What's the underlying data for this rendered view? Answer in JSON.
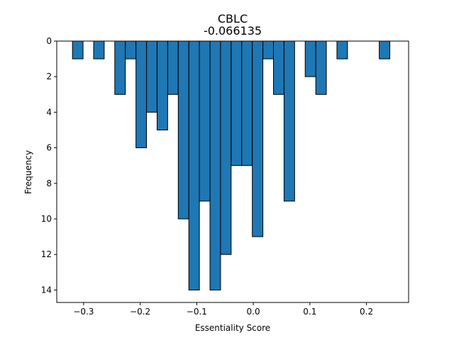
{
  "chart_data": {
    "type": "bar",
    "title": "CBLC",
    "subtitle": "-0.066135",
    "xlabel": "Essentiality Score",
    "ylabel": "Frequency",
    "xlim": [
      -0.3475,
      0.2745
    ],
    "ylim": [
      0,
      14.7
    ],
    "y_inverted": true,
    "bin_width": 0.0187,
    "bar_color": "#1f77b4",
    "edge_color": "#000000",
    "x_ticks": [
      -0.3,
      -0.2,
      -0.1,
      0.0,
      0.1,
      0.2
    ],
    "x_tick_labels": [
      "−0.3",
      "−0.2",
      "−0.1",
      "0.0",
      "0.1",
      "0.2"
    ],
    "y_ticks": [
      0,
      2,
      4,
      6,
      8,
      10,
      12,
      14
    ],
    "y_tick_labels": [
      "0",
      "2",
      "4",
      "6",
      "8",
      "10",
      "12",
      "14"
    ],
    "bins": [
      {
        "x": -0.3197,
        "value": 1
      },
      {
        "x": -0.2823,
        "value": 1
      },
      {
        "x": -0.2449,
        "value": 3
      },
      {
        "x": -0.2262,
        "value": 1
      },
      {
        "x": -0.2075,
        "value": 6
      },
      {
        "x": -0.1888,
        "value": 4
      },
      {
        "x": -0.1701,
        "value": 5
      },
      {
        "x": -0.1514,
        "value": 3
      },
      {
        "x": -0.1327,
        "value": 10
      },
      {
        "x": -0.114,
        "value": 14
      },
      {
        "x": -0.0953,
        "value": 9
      },
      {
        "x": -0.0766,
        "value": 14
      },
      {
        "x": -0.0579,
        "value": 12
      },
      {
        "x": -0.0392,
        "value": 7
      },
      {
        "x": -0.0205,
        "value": 7
      },
      {
        "x": -0.0018,
        "value": 11
      },
      {
        "x": 0.0169,
        "value": 1
      },
      {
        "x": 0.0356,
        "value": 3
      },
      {
        "x": 0.0543,
        "value": 9
      },
      {
        "x": 0.0917,
        "value": 2
      },
      {
        "x": 0.1104,
        "value": 3
      },
      {
        "x": 0.1478,
        "value": 1
      },
      {
        "x": 0.2226,
        "value": 1
      }
    ]
  }
}
